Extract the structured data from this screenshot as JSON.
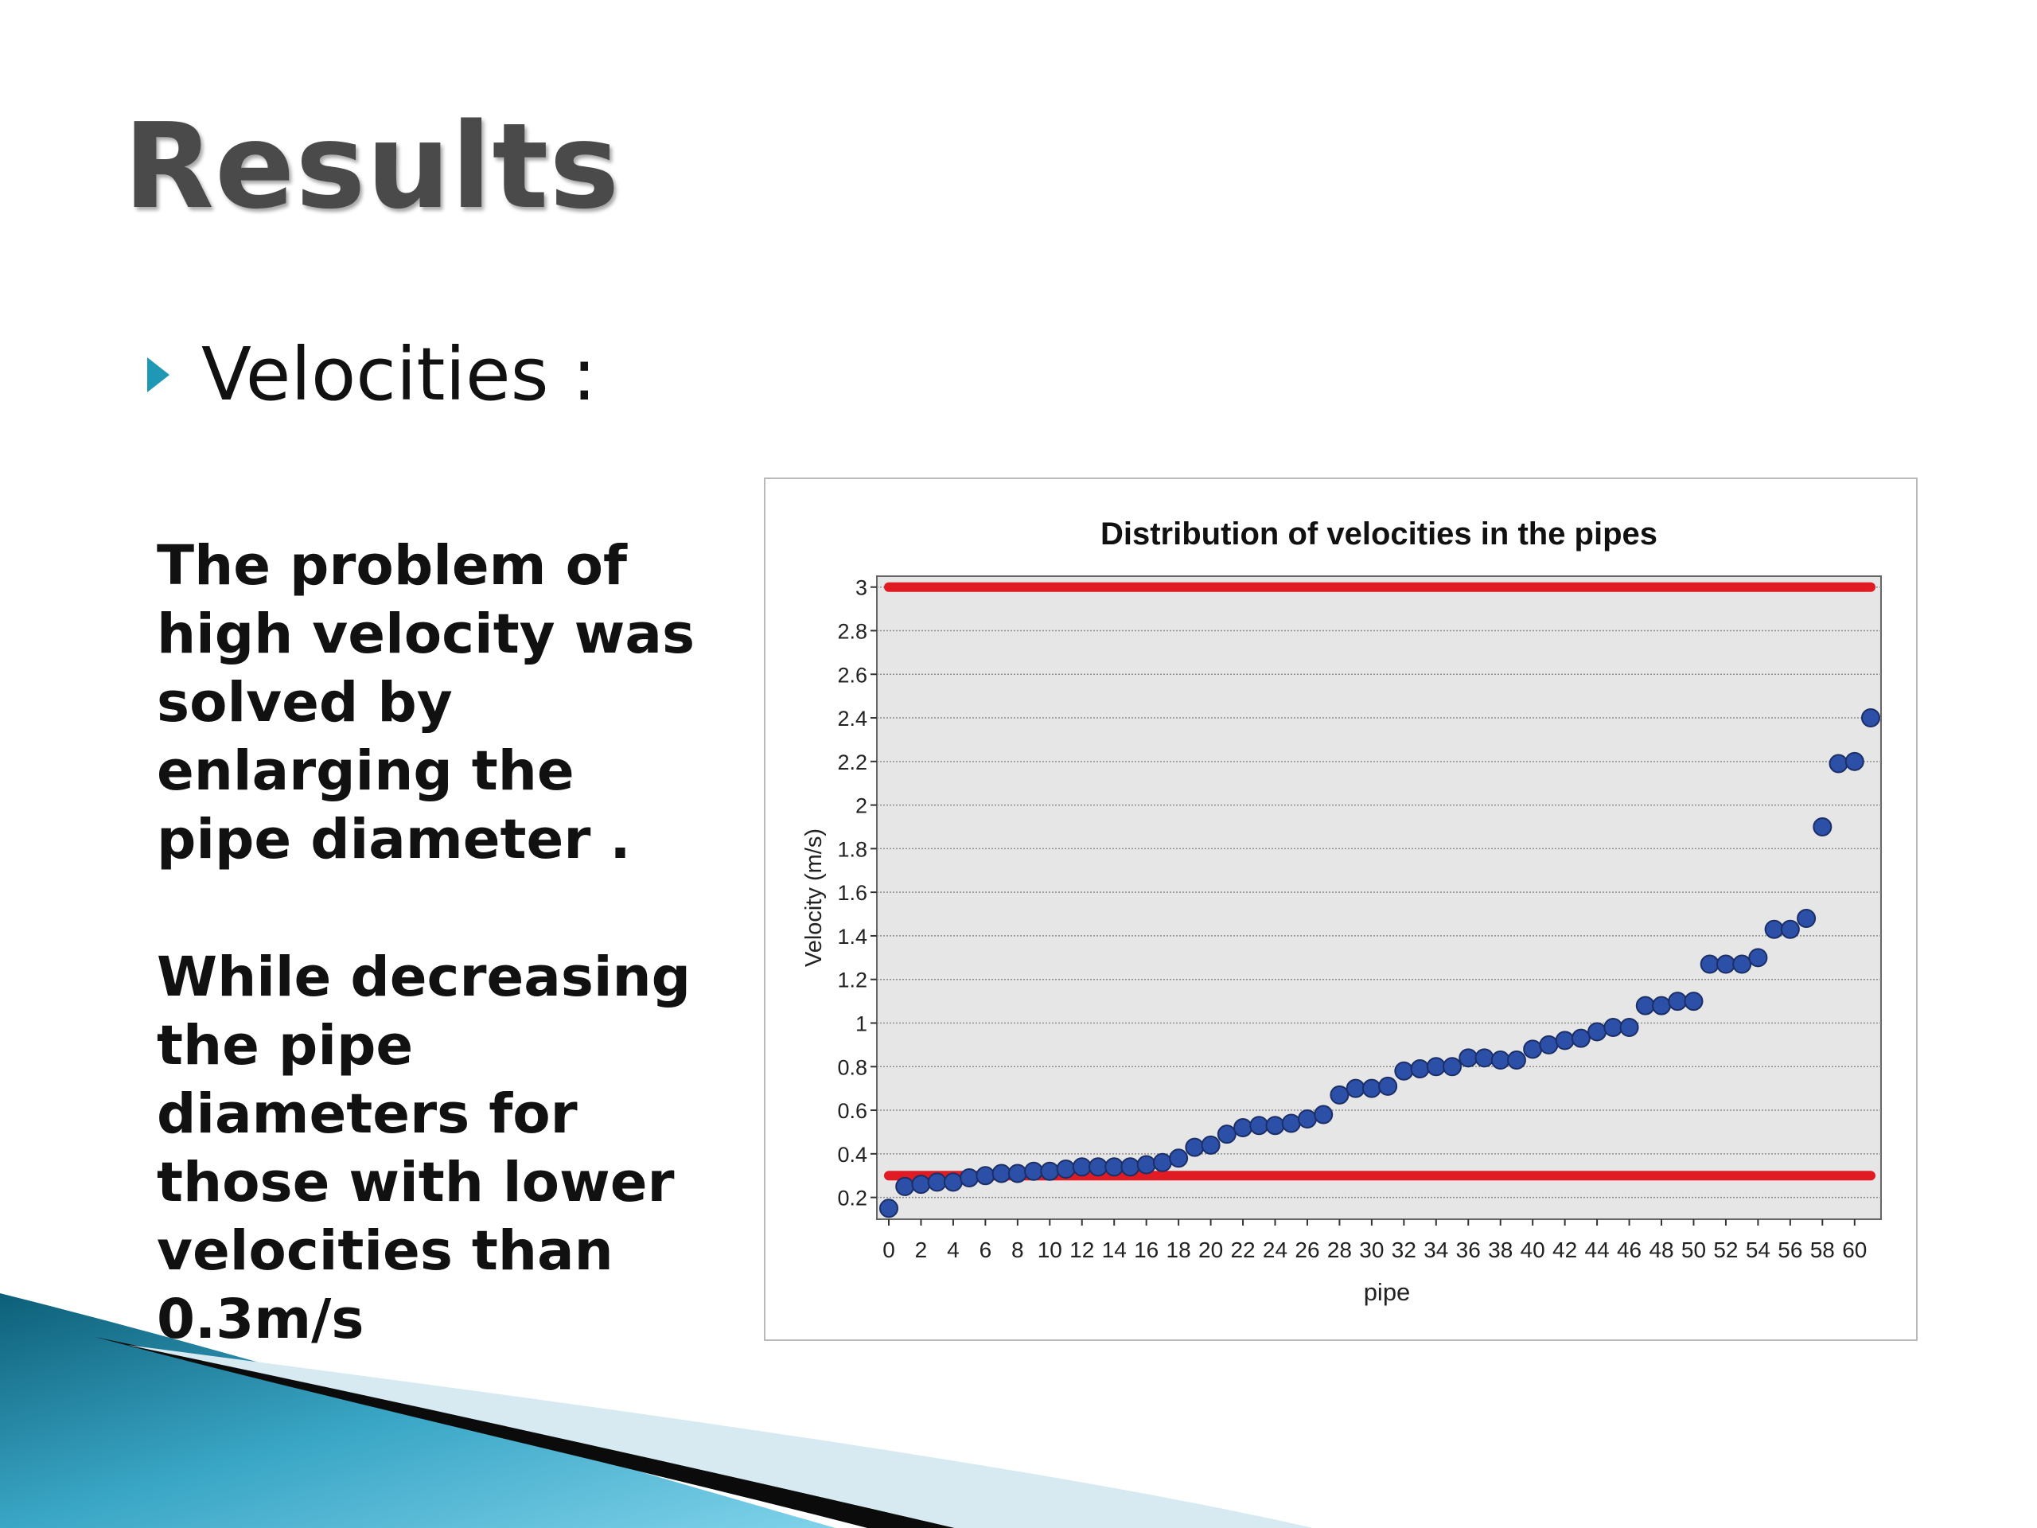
{
  "slide": {
    "title": "Results",
    "bullet": "Velocities :",
    "paragraph1": [
      "The problem of",
      "high velocity was",
      "solved by",
      "enlarging the",
      "pipe diameter ."
    ],
    "paragraph2": [
      "While decreasing",
      "the pipe",
      "diameters for",
      "those with lower",
      "velocities than",
      "0.3m/s"
    ],
    "bullet_color": "#1f98b6"
  },
  "chart_data": {
    "type": "scatter",
    "title": "Distribution of velocities in the pipes",
    "xlabel": "pipe",
    "ylabel": "Velocity (m/s)",
    "xlim": [
      0,
      61
    ],
    "ylim": [
      0.1,
      3.05
    ],
    "xticks": [
      0,
      2,
      4,
      6,
      8,
      10,
      12,
      14,
      16,
      18,
      20,
      22,
      24,
      26,
      28,
      30,
      32,
      34,
      36,
      38,
      40,
      42,
      44,
      46,
      48,
      50,
      52,
      54,
      56,
      58,
      60
    ],
    "yticks": [
      0.2,
      0.4,
      0.6,
      0.8,
      1,
      1.2,
      1.4,
      1.6,
      1.8,
      2,
      2.2,
      2.4,
      2.6,
      2.8,
      3
    ],
    "ytick_labels": [
      "0.2",
      "0.4",
      "0.6",
      "0.8",
      "1",
      "1.2",
      "1.4",
      "1.6",
      "1.8",
      "2",
      "2.2",
      "2.4",
      "2.6",
      "2.8",
      "3"
    ],
    "grid": "horizontal",
    "series": [
      {
        "color": "#2c4fa8",
        "x": [
          0,
          1,
          2,
          3,
          4,
          5,
          6,
          7,
          8,
          9,
          10,
          11,
          12,
          13,
          14,
          15,
          16,
          17,
          18,
          19,
          20,
          21,
          22,
          23,
          24,
          25,
          26,
          27,
          28,
          29,
          30,
          31,
          32,
          33,
          34,
          35,
          36,
          37,
          38,
          39,
          40,
          41,
          42,
          43,
          44,
          45,
          46,
          47,
          48,
          49,
          50,
          51,
          52,
          53,
          54,
          55,
          56,
          57,
          58,
          59,
          60,
          61
        ],
        "y": [
          0.15,
          0.25,
          0.26,
          0.27,
          0.27,
          0.29,
          0.3,
          0.31,
          0.31,
          0.32,
          0.32,
          0.33,
          0.34,
          0.34,
          0.34,
          0.34,
          0.35,
          0.36,
          0.38,
          0.43,
          0.44,
          0.49,
          0.52,
          0.53,
          0.53,
          0.54,
          0.56,
          0.58,
          0.67,
          0.7,
          0.7,
          0.71,
          0.78,
          0.79,
          0.8,
          0.8,
          0.84,
          0.84,
          0.83,
          0.83,
          0.88,
          0.9,
          0.92,
          0.93,
          0.96,
          0.98,
          0.98,
          1.08,
          1.08,
          1.1,
          1.1,
          1.27,
          1.27,
          1.27,
          1.3,
          1.43,
          1.43,
          1.48,
          1.9,
          2.19,
          2.2,
          2.4
        ]
      }
    ],
    "reference_lines": [
      {
        "y": 3.0,
        "color": "#e01b24"
      },
      {
        "y": 0.3,
        "color": "#e01b24"
      }
    ],
    "plot_background": "#e6e6e6"
  }
}
